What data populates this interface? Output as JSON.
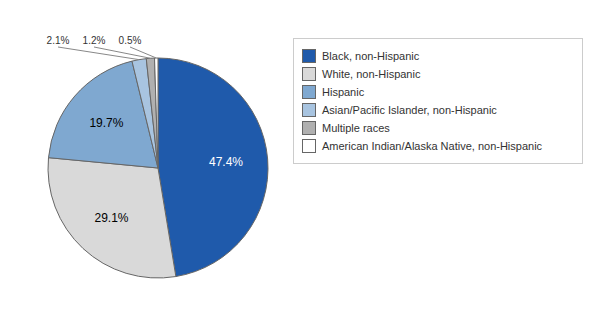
{
  "chart_data": {
    "type": "pie",
    "categories": [
      "Black, non-Hispanic",
      "White, non-Hispanic",
      "Hispanic",
      "Asian/Pacific Islander, non-Hispanic",
      "Multiple races",
      "American Indian/Alaska Native, non-Hispanic"
    ],
    "values": [
      47.4,
      29.1,
      19.7,
      2.1,
      1.2,
      0.5
    ],
    "value_labels": [
      "47.4%",
      "29.1%",
      "19.7%",
      "2.1%",
      "1.2%",
      "0.5%"
    ],
    "colors": [
      "#1f5aab",
      "#d9d9d9",
      "#7fa8d0",
      "#a8c4e0",
      "#b0b0b0",
      "#ffffff"
    ],
    "data_labels": true,
    "legend": "right"
  }
}
